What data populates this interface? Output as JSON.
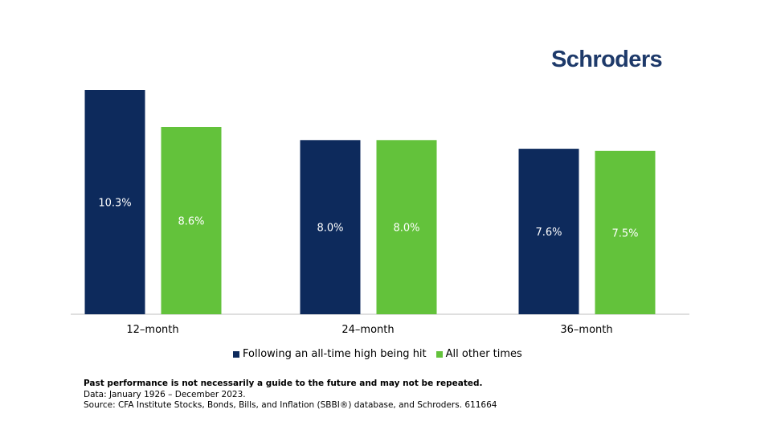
{
  "brand": {
    "logo_text": "Schroders",
    "logo_color": "#1e3a6a"
  },
  "colors": {
    "series_1": "#0d2a5c",
    "series_2": "#63c23b",
    "axis": "#bfbfbf"
  },
  "chart_data": {
    "type": "bar",
    "categories": [
      "12–month",
      "24–month",
      "36–month"
    ],
    "series": [
      {
        "name": "Following an all-time high being hit",
        "values": [
          10.3,
          8.0,
          7.6
        ],
        "labels": [
          "10.3%",
          "8.0%",
          "7.6%"
        ]
      },
      {
        "name": "All other times",
        "values": [
          8.6,
          8.0,
          7.5
        ],
        "labels": [
          "8.6%",
          "8.0%",
          "7.5%"
        ]
      }
    ],
    "title": "",
    "xlabel": "",
    "ylabel": "",
    "ylim": [
      0,
      10.3
    ],
    "grid": false,
    "legend_position": "bottom-center"
  },
  "footnotes": {
    "disclaimer": "Past performance is not necessarily a guide to the future and may not be repeated.",
    "data_period": "Data: January 1926 – December 2023.",
    "source": "Source: CFA Institute Stocks, Bonds, Bills, and Inflation (SBBI®) database, and Schroders. 611664"
  }
}
